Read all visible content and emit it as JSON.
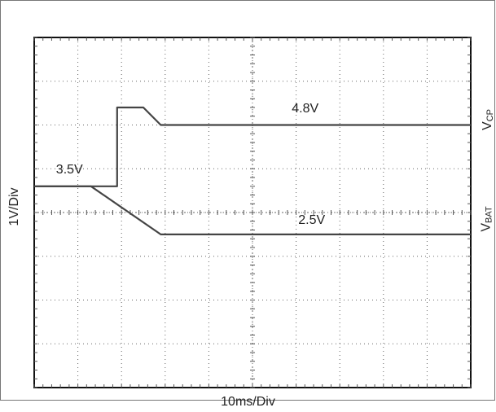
{
  "chart_data": {
    "type": "line",
    "xlabel": "10ms/Div",
    "ylabel": "1V/Div",
    "grid": true,
    "x_divisions": 10,
    "y_divisions": 8,
    "xlim": [
      0,
      10
    ],
    "ylim": [
      0,
      8
    ],
    "series": [
      {
        "name": "V_CP",
        "name_main": "V",
        "name_sub": "CP",
        "x": [
          0,
          1.9,
          1.9,
          2.0,
          2.5,
          2.9,
          10
        ],
        "y": [
          4.6,
          4.6,
          6.4,
          6.4,
          6.4,
          6.0,
          6.0
        ]
      },
      {
        "name": "V_BAT",
        "name_main": "V",
        "name_sub": "BAT",
        "x": [
          0,
          1.3,
          2.9,
          10
        ],
        "y": [
          4.6,
          4.6,
          3.5,
          3.5
        ]
      }
    ],
    "annotations": [
      {
        "text": "4.8V",
        "x": 5.9,
        "y": 6.35
      },
      {
        "text": "3.5V",
        "x": 0.5,
        "y": 4.95
      },
      {
        "text": "2.5V",
        "x": 6.05,
        "y": 3.8
      }
    ]
  }
}
